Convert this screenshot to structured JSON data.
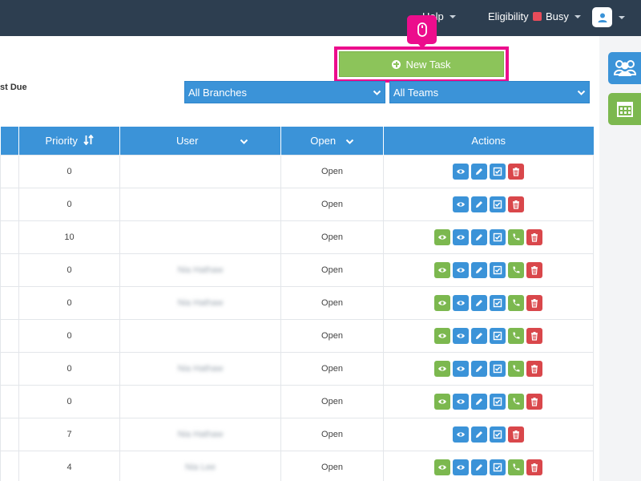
{
  "navbar": {
    "help_label": "Help",
    "eligibility_label": "Eligibility",
    "busy_label": "Busy",
    "busy_color": "#e74c5a",
    "avatar_icon": "user-icon"
  },
  "toolbar": {
    "partial_label": "st Due",
    "new_task_label": "New Task",
    "branch_select": "All Branches",
    "team_select": "All Teams",
    "accent_color": "#3b93d8",
    "highlight_color": "#ec0d8c"
  },
  "table": {
    "columns": [
      "",
      "Priority",
      "User",
      "Open",
      "Actions"
    ],
    "rows": [
      {
        "priority": "0",
        "user": "",
        "open": "Open",
        "actions": [
          "view",
          "edit",
          "check",
          "delete"
        ]
      },
      {
        "priority": "0",
        "user": "",
        "open": "Open",
        "actions": [
          "view",
          "edit",
          "check",
          "delete"
        ]
      },
      {
        "priority": "10",
        "user": "",
        "open": "Open",
        "actions": [
          "complete",
          "view",
          "edit",
          "check",
          "call",
          "delete"
        ]
      },
      {
        "priority": "0",
        "user": "Nia Hathaw",
        "open": "Open",
        "actions": [
          "complete",
          "view",
          "edit",
          "check",
          "call",
          "delete"
        ]
      },
      {
        "priority": "0",
        "user": "Nia Hathaw",
        "open": "Open",
        "actions": [
          "complete",
          "view",
          "edit",
          "check",
          "call",
          "delete"
        ]
      },
      {
        "priority": "0",
        "user": "",
        "open": "Open",
        "actions": [
          "complete",
          "view",
          "edit",
          "check",
          "call",
          "delete"
        ]
      },
      {
        "priority": "0",
        "user": "Nia Hathaw",
        "open": "Open",
        "actions": [
          "complete",
          "view",
          "edit",
          "check",
          "call",
          "delete"
        ]
      },
      {
        "priority": "0",
        "user": "",
        "open": "Open",
        "actions": [
          "complete",
          "view",
          "edit",
          "check",
          "call",
          "delete"
        ]
      },
      {
        "priority": "7",
        "user": "Nia Hathaw",
        "open": "Open",
        "actions": [
          "view",
          "edit",
          "check",
          "delete"
        ]
      },
      {
        "priority": "4",
        "user": "Nia Lee",
        "open": "Open",
        "actions": [
          "complete",
          "view",
          "edit",
          "check",
          "call",
          "delete"
        ]
      }
    ]
  }
}
